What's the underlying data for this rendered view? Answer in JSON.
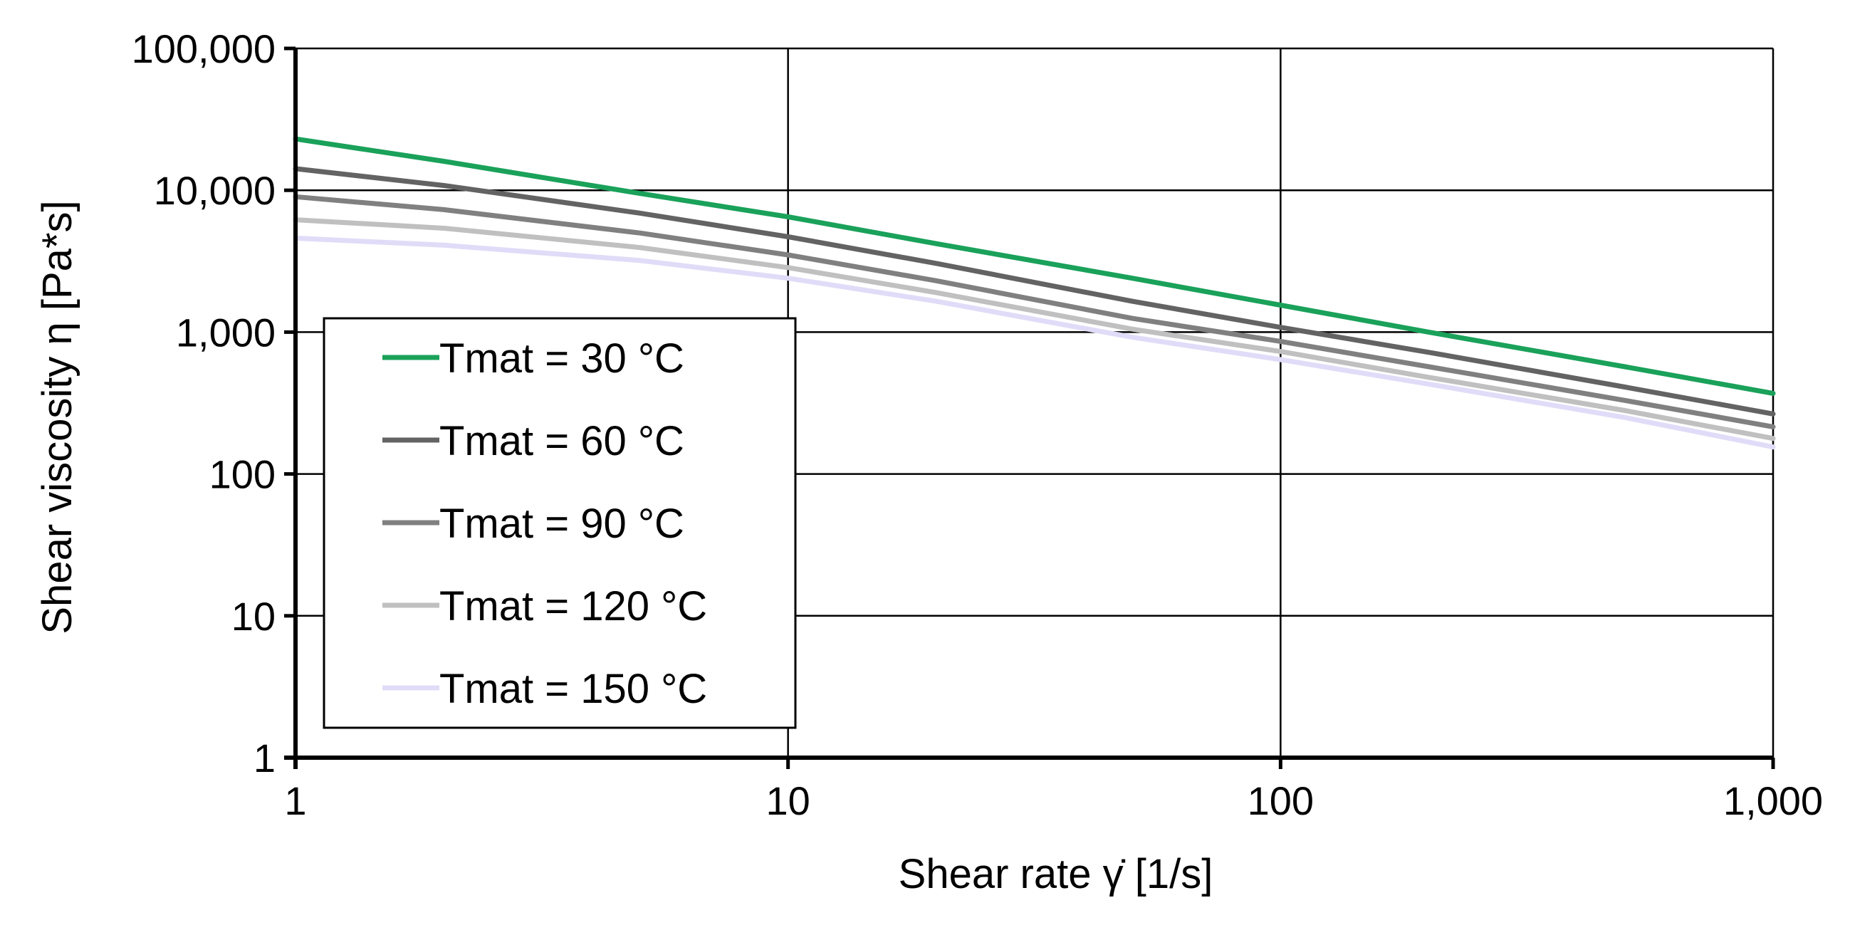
{
  "chart_data": {
    "type": "line",
    "x_scale": "log",
    "y_scale": "log",
    "xlabel": "Shear rate γ̇   [1/s]",
    "ylabel": "Shear viscosity η   [Pa*s]",
    "xlim": [
      1,
      1000
    ],
    "ylim": [
      1,
      100000
    ],
    "x_ticks": [
      1,
      10,
      100,
      1000
    ],
    "x_tick_labels": [
      "1",
      "10",
      "100",
      "1,000"
    ],
    "y_ticks": [
      1,
      10,
      100,
      1000,
      10000,
      100000
    ],
    "y_tick_labels": [
      "1",
      "10",
      "100",
      "1,000",
      "10,000",
      "100,000"
    ],
    "grid": true,
    "legend_position": "left-center",
    "x": [
      1,
      2,
      5,
      10,
      20,
      50,
      100,
      200,
      500,
      1000
    ],
    "series": [
      {
        "name": "Tmat = 30 °C",
        "color": "#1aa15a",
        "values": [
          23000,
          16000,
          9500,
          6500,
          4200,
          2400,
          1550,
          1000,
          570,
          370
        ]
      },
      {
        "name": "Tmat = 60 °C",
        "color": "#636363",
        "values": [
          14200,
          10800,
          6900,
          4700,
          3050,
          1650,
          1080,
          720,
          410,
          265
        ]
      },
      {
        "name": "Tmat = 90 °C",
        "color": "#808080",
        "values": [
          9000,
          7300,
          5000,
          3500,
          2300,
          1250,
          860,
          570,
          330,
          215
        ]
      },
      {
        "name": "Tmat = 120 °C",
        "color": "#c0c0c0",
        "values": [
          6200,
          5400,
          3950,
          2850,
          1900,
          1050,
          730,
          480,
          280,
          178
        ]
      },
      {
        "name": "Tmat = 150 °C",
        "color": "#e0dcf8",
        "values": [
          4600,
          4100,
          3200,
          2400,
          1650,
          920,
          640,
          430,
          250,
          155
        ]
      }
    ]
  }
}
